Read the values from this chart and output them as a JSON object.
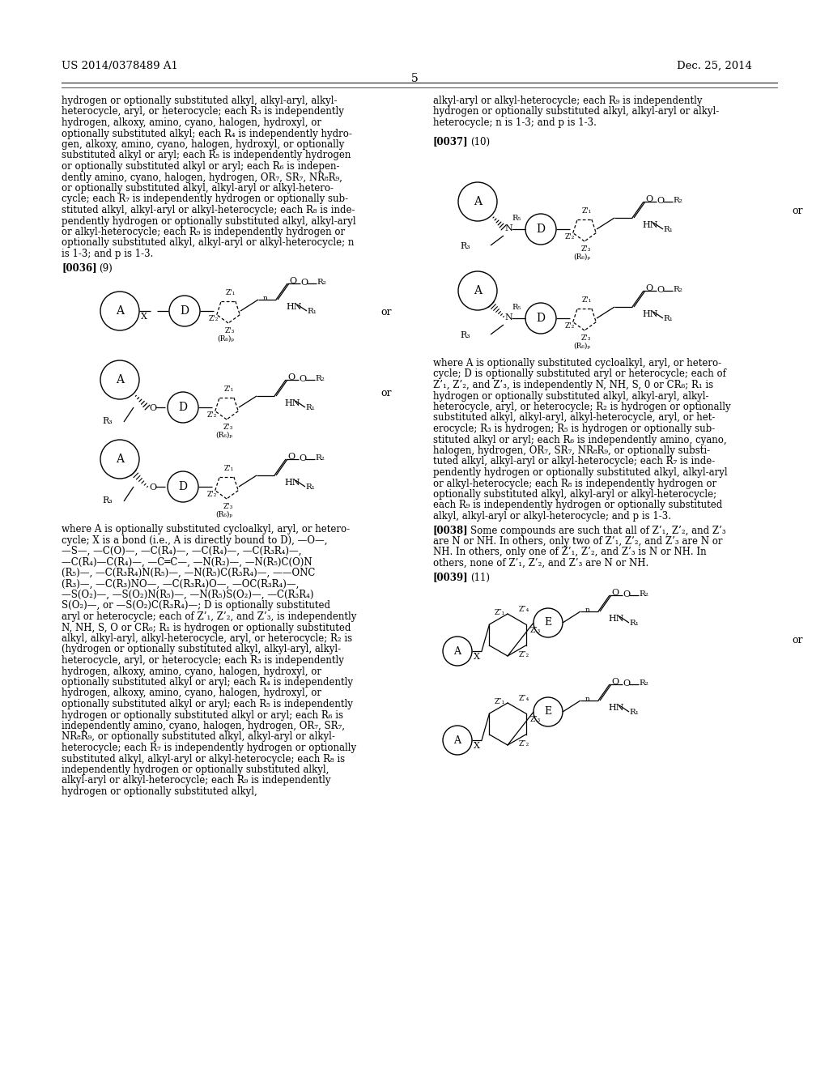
{
  "patent_number": "US 2014/0378489 A1",
  "patent_date": "Dec. 25, 2014",
  "page_number": "5",
  "left_top_lines": [
    "hydrogen or optionally substituted alkyl, alkyl-aryl, alkyl-",
    "heterocycle, aryl, or heterocycle; each R₃ is independently",
    "hydrogen, alkoxy, amino, cyano, halogen, hydroxyl, or",
    "optionally substituted alkyl; each R₄ is independently hydro-",
    "gen, alkoxy, amino, cyano, halogen, hydroxyl, or optionally",
    "substituted alkyl or aryl; each R₅ is independently hydrogen",
    "or optionally substituted alkyl or aryl; each R₆ is indepen-",
    "dently amino, cyano, halogen, hydrogen, OR₇, SR₇, NR₈R₉,",
    "or optionally substituted alkyl, alkyl-aryl or alkyl-hetero-",
    "cycle; each R₇ is independently hydrogen or optionally sub-",
    "stituted alkyl, alkyl-aryl or alkyl-heterocycle; each R₈ is inde-",
    "pendently hydrogen or optionally substituted alkyl, alkyl-aryl",
    "or alkyl-heterocycle; each R₉ is independently hydrogen or",
    "optionally substituted alkyl, alkyl-aryl or alkyl-heterocycle; n",
    "is 1-3; and p is 1-3."
  ],
  "right_top_lines": [
    "alkyl-aryl or alkyl-heterocycle; each R₉ is independently",
    "hydrogen or optionally substituted alkyl, alkyl-aryl or alkyl-",
    "heterocycle; n is 1-3; and p is 1-3."
  ],
  "left_bottom_lines": [
    "where A is optionally substituted cycloalkyl, aryl, or hetero-",
    "cycle; X is a bond (i.e., A is directly bound to D), —O—,",
    "—S—, —C(O)—, —C(R₄)—, —C(R₄)—, —C(R₃R₄)—,",
    "—C(R₄)—C(R₄)—, —C═C—, —N(R₂)—, —N(R₅)C(O)N",
    "(R₅)—, —C(R₃R₄)N(R₅)—, —N(R₅)C(R₃R₄)—, ——ONC",
    "(R₃)—, —C(R₃)NO—, —C(R₃R₄)O—, —OC(R₃R₄)—,",
    "—S(O₂)—, —S(O₂)N(R₅)—, —N(R₅)S(O₂)—, —C(R₃R₄)",
    "S(O₂)—, or —S(O₂)C(R₃R₄)—; D is optionally substituted",
    "aryl or heterocycle; each of Z’₁, Z’₂, and Z’₃, is independently",
    "N, NH, S, O or CR₆; R₁ is hydrogen or optionally substituted",
    "alkyl, alkyl-aryl, alkyl-heterocycle, aryl, or heterocycle; R₂ is",
    "(hydrogen or optionally substituted alkyl, alkyl-aryl, alkyl-",
    "heterocycle, aryl, or heterocycle; each R₃ is independently",
    "hydrogen, alkoxy, amino, cyano, halogen, hydroxyl, or",
    "optionally substituted alkyl or aryl; each R₄ is independently",
    "hydrogen, alkoxy, amino, cyano, halogen, hydroxyl, or",
    "optionally substituted alkyl or aryl; each R₅ is independently",
    "hydrogen or optionally substituted alkyl or aryl; each R₆ is",
    "independently amino, cyano, halogen, hydrogen, OR₇, SR₇,",
    "NR₈R₉, or optionally substituted alkyl, alkyl-aryl or alkyl-",
    "heterocycle; each R₇ is independently hydrogen or optionally",
    "substituted alkyl, alkyl-aryl or alkyl-heterocycle; each R₈ is",
    "independently hydrogen or optionally substituted alkyl,",
    "alkyl-aryl or alkyl-heterocycle; each R₉ is independently",
    "hydrogen or optionally substituted alkyl,"
  ],
  "right_bottom_lines": [
    "where A is optionally substituted cycloalkyl, aryl, or hetero-",
    "cycle; D is optionally substituted aryl or heterocycle; each of",
    "Z’₁, Z’₂, and Z’₃, is independently N, NH, S, 0 or CR₆; R₁ is",
    "hydrogen or optionally substituted alkyl, alkyl-aryl, alkyl-",
    "heterocycle, aryl, or heterocycle; R₂ is hydrogen or optionally",
    "substituted alkyl, alkyl-aryl, alkyl-heterocycle, aryl, or het-",
    "erocycle; R₃ is hydrogen; R₅ is hydrogen or optionally sub-",
    "stituted alkyl or aryl; each R₆ is independently amino, cyano,",
    "halogen, hydrogen, OR₇, SR₇, NR₈R₉, or optionally substi-",
    "tuted alkyl, alkyl-aryl or alkyl-heterocycle; each R₇ is inde-",
    "pendently hydrogen or optionally substituted alkyl, alkyl-aryl",
    "or alkyl-heterocycle; each R₈ is independently hydrogen or",
    "optionally substituted alkyl, alkyl-aryl or alkyl-heterocycle;",
    "each R₉ is independently hydrogen or optionally substituted",
    "alkyl, alkyl-aryl or alkyl-heterocycle; and p is 1-3."
  ],
  "para38_lines": [
    "Some compounds are such that all of Z’₁, Z’₂, and Z’₃",
    "are N or NH. In others, only two of Z’₁, Z’₂, and Z’₃ are N or",
    "NH. In others, only one of Z’₁, Z’₂, and Z’₃ is N or NH. In",
    "others, none of Z’₁, Z’₂, and Z’₃ are N or NH."
  ]
}
